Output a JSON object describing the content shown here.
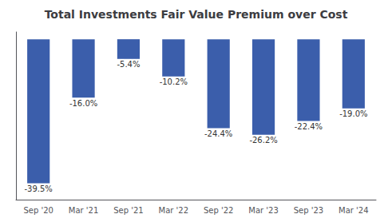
{
  "chart_data": {
    "type": "bar",
    "title": "Total Investments Fair Value Premium over Cost",
    "categories": [
      "Sep '20",
      "Mar '21",
      "Sep '21",
      "Mar '22",
      "Sep '22",
      "Mar '23",
      "Sep '23",
      "Mar '24"
    ],
    "values": [
      -39.5,
      -16.0,
      -5.4,
      -10.2,
      -24.4,
      -26.2,
      -22.4,
      -19.0
    ],
    "value_labels": [
      "-39.5%",
      "-16.0%",
      "-5.4%",
      "-10.2%",
      "-24.4%",
      "-26.2%",
      "-22.4%",
      "-19.0%"
    ],
    "data_labels": true,
    "color": "#3B5EAB",
    "ylim": [
      -44,
      2
    ],
    "grid": false,
    "tick_labels": "x"
  }
}
